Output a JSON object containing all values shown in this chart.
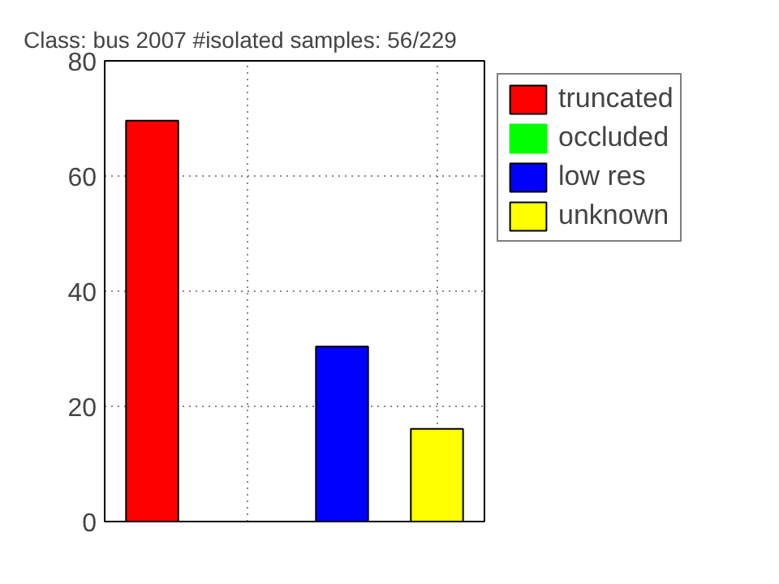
{
  "chart_data": {
    "type": "bar",
    "title": "Class: bus 2007     #isolated samples: 56/229",
    "categories": [
      null,
      null,
      null,
      null
    ],
    "series": [
      {
        "name": "truncated",
        "color": "#ff0000",
        "values": [
          69.6,
          null,
          null,
          null
        ]
      },
      {
        "name": "occluded",
        "color": "#00ff00",
        "values": [
          null,
          0,
          null,
          null
        ]
      },
      {
        "name": "low res",
        "color": "#0000ff",
        "values": [
          null,
          null,
          30.4,
          null
        ]
      },
      {
        "name": "unknown",
        "color": "#ffff00",
        "values": [
          null,
          null,
          null,
          16.1
        ]
      }
    ],
    "ylim": [
      0,
      80
    ],
    "yticks": [
      0,
      20,
      40,
      60,
      80
    ],
    "grid": true,
    "legend": "top right",
    "tick_labels": "y"
  }
}
